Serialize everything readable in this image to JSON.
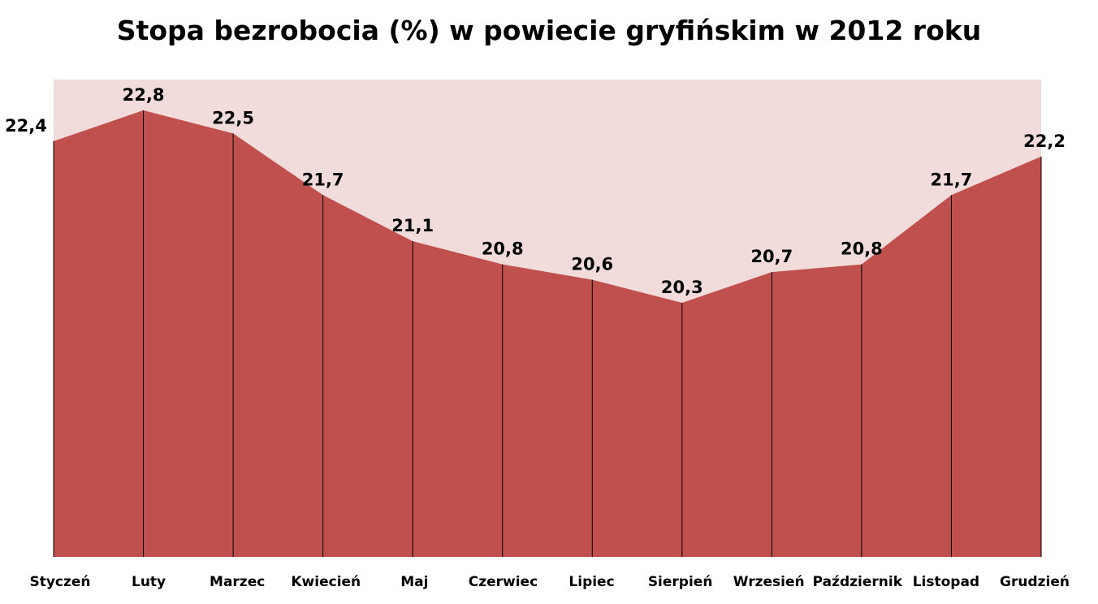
{
  "chart_data": {
    "type": "area",
    "title": "Stopa bezrobocia (%) w powiecie gryfińskim w 2012 roku",
    "xlabel": "",
    "ylabel": "",
    "categories": [
      "Styczeń",
      "Luty",
      "Marzec",
      "Kwiecień",
      "Maj",
      "Czerwiec",
      "Lipiec",
      "Sierpień",
      "Wrzesień",
      "Październik",
      "Listopad",
      "Grudzień"
    ],
    "values": [
      22.4,
      22.8,
      22.5,
      21.7,
      21.1,
      20.8,
      20.6,
      20.3,
      20.7,
      20.8,
      21.7,
      22.2
    ],
    "data_labels": [
      "22,4",
      "22,8",
      "22,5",
      "21,7",
      "21,1",
      "20,8",
      "20,6",
      "20,3",
      "20,7",
      "20,8",
      "21,7",
      "22,2"
    ],
    "ylim": [
      17.0,
      23.2
    ],
    "grid": false,
    "legend": "none",
    "colors": {
      "area_fill": "#c0504d",
      "plot_background": "#f2dcdb",
      "drop_lines": "#000000"
    }
  }
}
